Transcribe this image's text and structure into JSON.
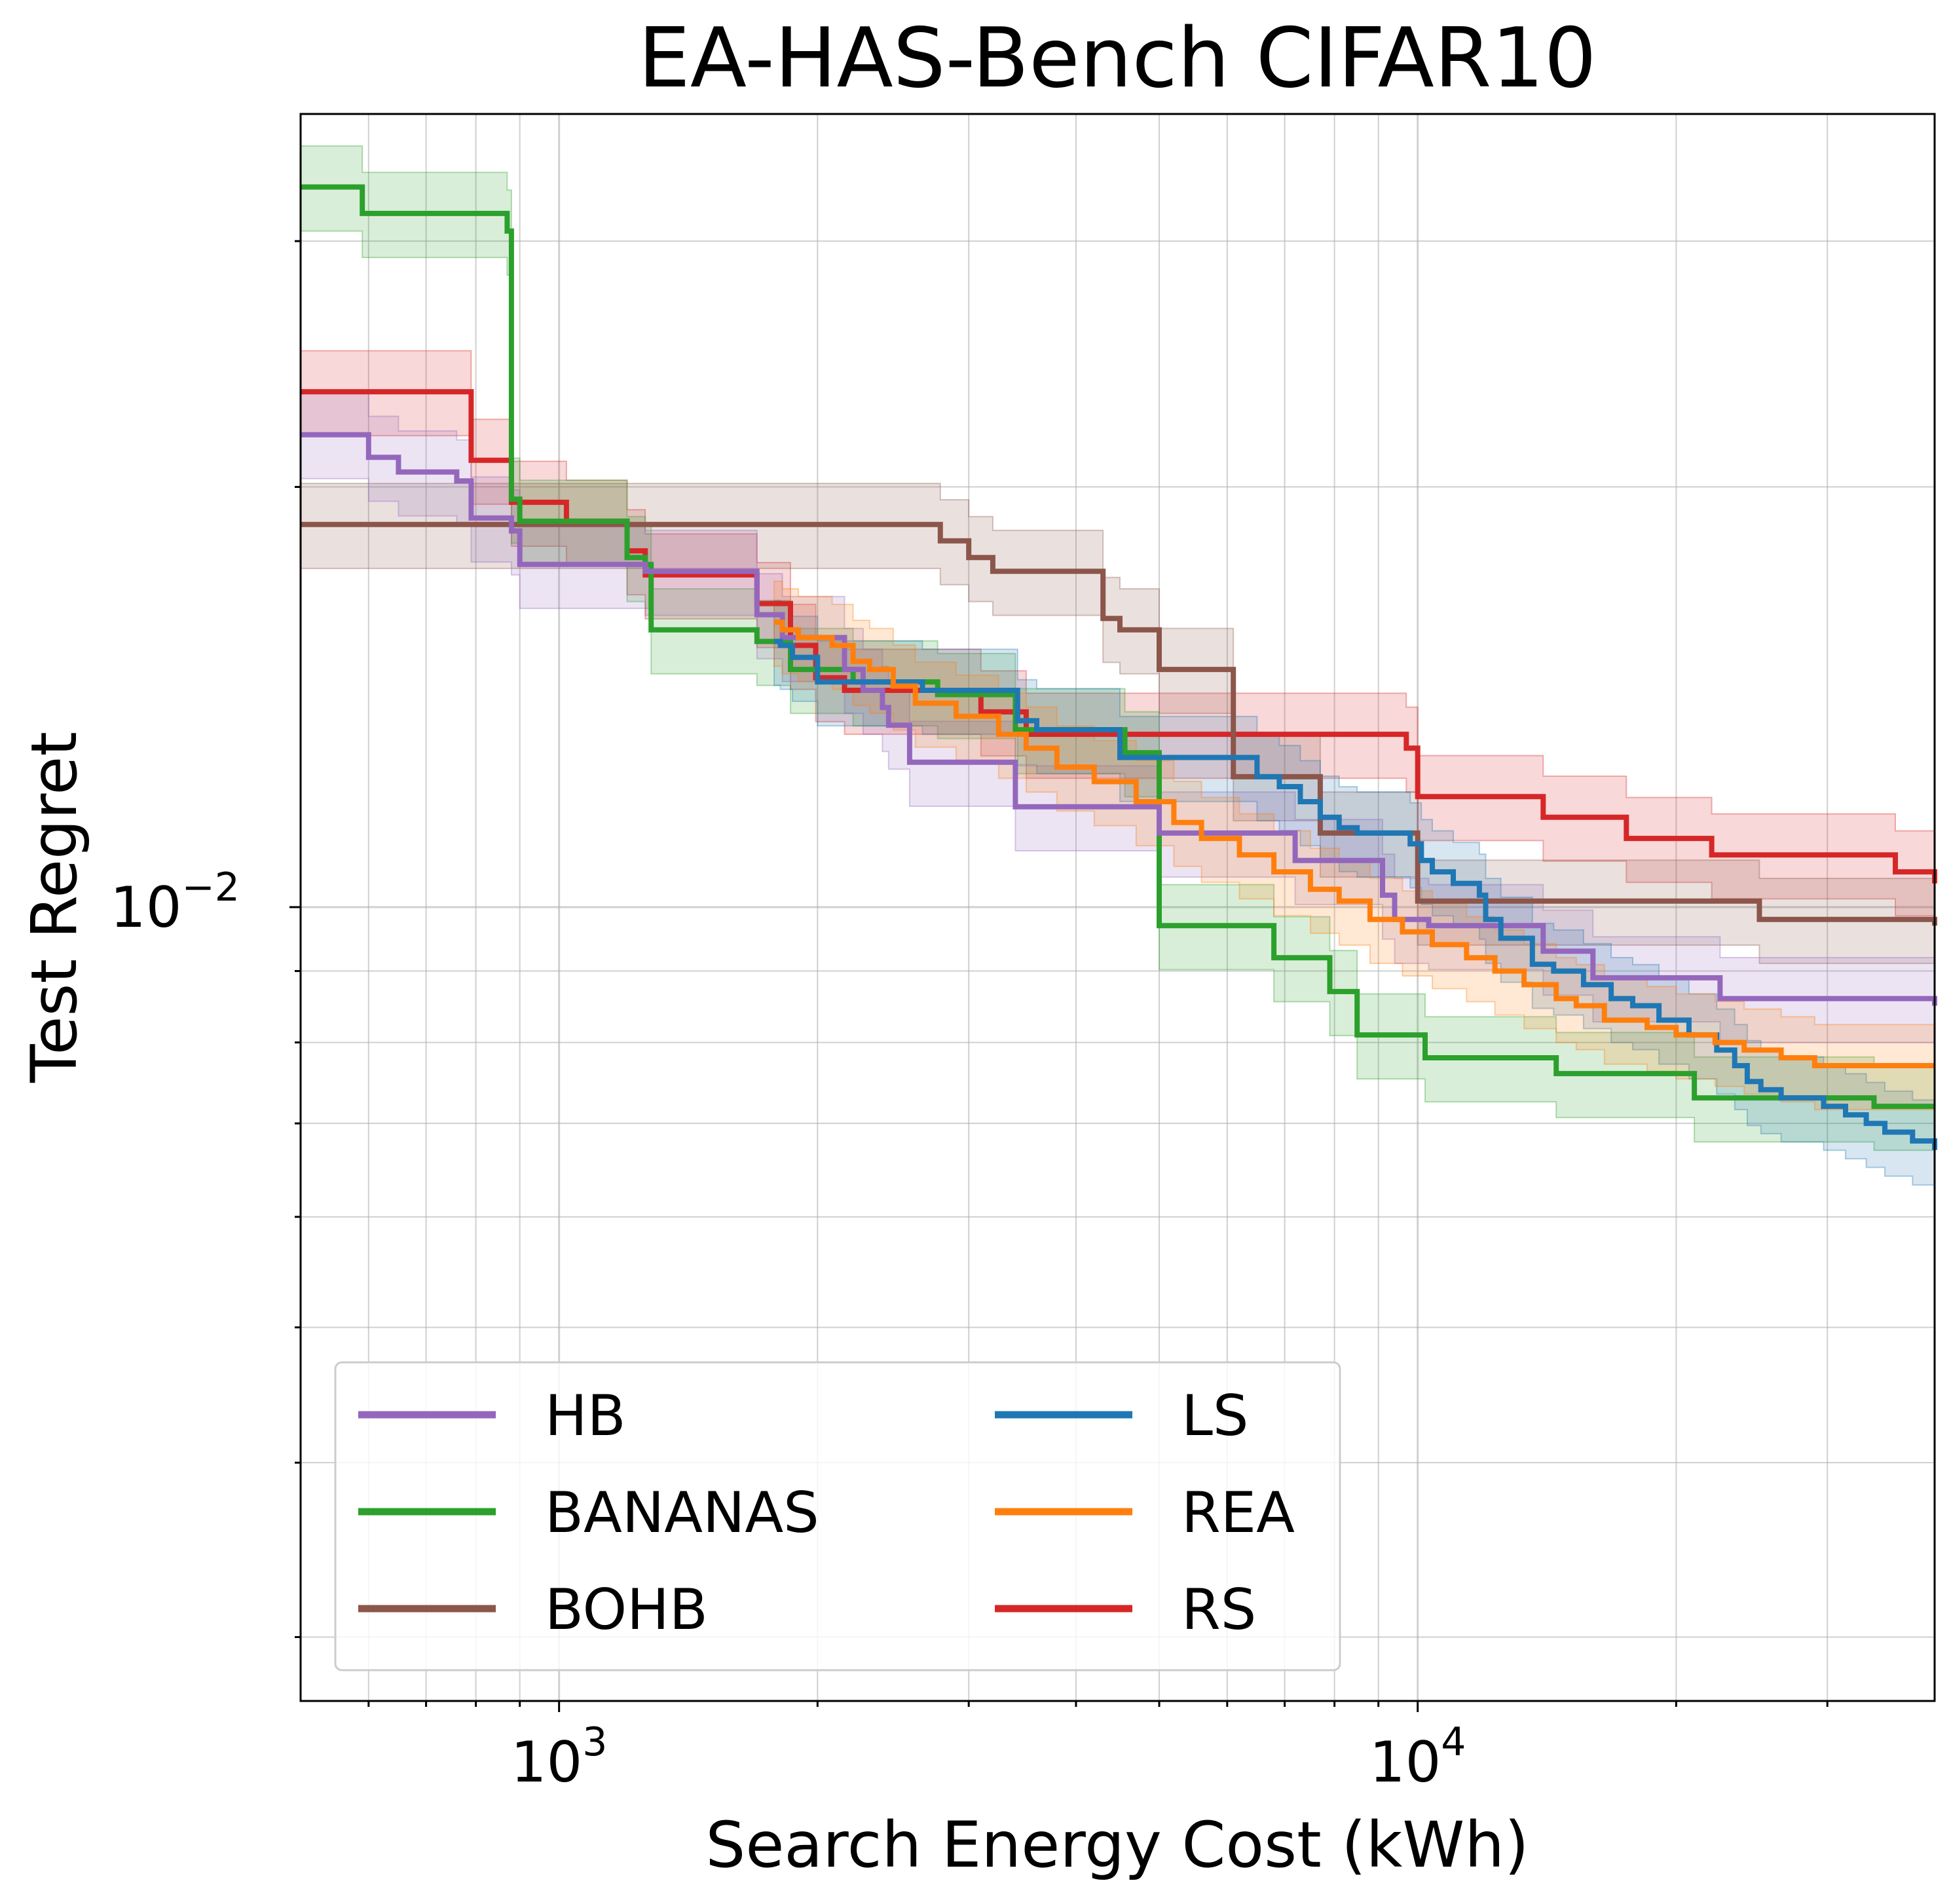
{
  "chart_data": {
    "type": "line",
    "title": "EA-HAS-Bench CIFAR10",
    "xlabel": "Search Energy Cost (kWh)",
    "ylabel": "Test Regret",
    "xscale": "log",
    "yscale": "log",
    "xlim": [
      500,
      40000
    ],
    "ylim": [
      0.0027,
      0.037
    ],
    "x_ticks": [
      {
        "value": 1000,
        "base": "10",
        "exp": "3"
      },
      {
        "value": 10000,
        "base": "10",
        "exp": "4"
      }
    ],
    "y_ticks": [
      {
        "value": 0.01,
        "base": "10",
        "exp": "−2"
      }
    ],
    "grid": true,
    "grid_minor": true,
    "legend": {
      "placement": "lower-left",
      "columns": 2
    },
    "series": [
      {
        "name": "HB",
        "color": "#9467bd",
        "points": [
          [
            500,
            0.0218
          ],
          [
            580,
            0.0218
          ],
          [
            600,
            0.021
          ],
          [
            650,
            0.0205
          ],
          [
            760,
            0.0202
          ],
          [
            790,
            0.019
          ],
          [
            880,
            0.0186
          ],
          [
            900,
            0.0176
          ],
          [
            1200,
            0.0176
          ],
          [
            1260,
            0.0174
          ],
          [
            1660,
            0.0174
          ],
          [
            1700,
            0.0162
          ],
          [
            1820,
            0.0156
          ],
          [
            2080,
            0.0156
          ],
          [
            2150,
            0.0148
          ],
          [
            2260,
            0.0143
          ],
          [
            2380,
            0.0139
          ],
          [
            2420,
            0.0135
          ],
          [
            2560,
            0.0127
          ],
          [
            3300,
            0.0127
          ],
          [
            3400,
            0.0118
          ],
          [
            4800,
            0.0118
          ],
          [
            5000,
            0.0113
          ],
          [
            6900,
            0.0113
          ],
          [
            7200,
            0.0108
          ],
          [
            8400,
            0.0108
          ],
          [
            9100,
            0.0102
          ],
          [
            9400,
            0.0098
          ],
          [
            10300,
            0.0097
          ],
          [
            13300,
            0.0097
          ],
          [
            14000,
            0.0093
          ],
          [
            15300,
            0.0093
          ],
          [
            16000,
            0.0089
          ],
          [
            21500,
            0.0089
          ],
          [
            22500,
            0.0086
          ],
          [
            40000,
            0.0085
          ]
        ]
      },
      {
        "name": "BANANAS",
        "color": "#2ca02c",
        "points": [
          [
            500,
            0.0328
          ],
          [
            550,
            0.0328
          ],
          [
            590,
            0.0314
          ],
          [
            850,
            0.0314
          ],
          [
            870,
            0.0305
          ],
          [
            880,
            0.0196
          ],
          [
            900,
            0.0189
          ],
          [
            1200,
            0.0178
          ],
          [
            1260,
            0.0176
          ],
          [
            1280,
            0.0158
          ],
          [
            1650,
            0.0158
          ],
          [
            1700,
            0.0155
          ],
          [
            1860,
            0.0148
          ],
          [
            2150,
            0.0148
          ],
          [
            2200,
            0.0145
          ],
          [
            2700,
            0.0145
          ],
          [
            2760,
            0.0142
          ],
          [
            3200,
            0.0142
          ],
          [
            3400,
            0.0134
          ],
          [
            4450,
            0.0134
          ],
          [
            4560,
            0.0129
          ],
          [
            4900,
            0.0129
          ],
          [
            5000,
            0.0097
          ],
          [
            6600,
            0.0097
          ],
          [
            6800,
            0.0092
          ],
          [
            7700,
            0.0092
          ],
          [
            7900,
            0.0087
          ],
          [
            8300,
            0.0087
          ],
          [
            8500,
            0.0081
          ],
          [
            10000,
            0.0081
          ],
          [
            10200,
            0.0078
          ],
          [
            12000,
            0.0078
          ],
          [
            13600,
            0.0078
          ],
          [
            14500,
            0.0076
          ],
          [
            19000,
            0.0076
          ],
          [
            21000,
            0.0073
          ],
          [
            31000,
            0.0073
          ],
          [
            34000,
            0.0072
          ],
          [
            40000,
            0.0072
          ]
        ]
      },
      {
        "name": "BOHB",
        "color": "#8c564b",
        "points": [
          [
            500,
            0.0188
          ],
          [
            2700,
            0.0188
          ],
          [
            2780,
            0.0183
          ],
          [
            3000,
            0.0178
          ],
          [
            3200,
            0.0174
          ],
          [
            4250,
            0.0174
          ],
          [
            4300,
            0.0161
          ],
          [
            4500,
            0.0158
          ],
          [
            4900,
            0.0158
          ],
          [
            5000,
            0.0148
          ],
          [
            6000,
            0.0148
          ],
          [
            6100,
            0.0124
          ],
          [
            7600,
            0.0124
          ],
          [
            7700,
            0.0113
          ],
          [
            9700,
            0.0113
          ],
          [
            10000,
            0.0101
          ],
          [
            12000,
            0.0101
          ],
          [
            22000,
            0.0101
          ],
          [
            25000,
            0.0098
          ],
          [
            38000,
            0.0098
          ],
          [
            40000,
            0.0097
          ]
        ]
      },
      {
        "name": "LS",
        "color": "#1f77b4",
        "points": [
          [
            1780,
            0.0155
          ],
          [
            1810,
            0.0154
          ],
          [
            1870,
            0.0151
          ],
          [
            2000,
            0.0145
          ],
          [
            2620,
            0.0145
          ],
          [
            2650,
            0.0143
          ],
          [
            3350,
            0.0143
          ],
          [
            3420,
            0.0136
          ],
          [
            3600,
            0.0134
          ],
          [
            4300,
            0.0134
          ],
          [
            4500,
            0.0128
          ],
          [
            6500,
            0.0124
          ],
          [
            6900,
            0.0122
          ],
          [
            7300,
            0.0119
          ],
          [
            7700,
            0.0116
          ],
          [
            8100,
            0.0114
          ],
          [
            8500,
            0.0113
          ],
          [
            9800,
            0.0111
          ],
          [
            10100,
            0.0108
          ],
          [
            10400,
            0.0106
          ],
          [
            11000,
            0.0104
          ],
          [
            11800,
            0.0102
          ],
          [
            12000,
            0.0098
          ],
          [
            12500,
            0.0095
          ],
          [
            13600,
            0.0091
          ],
          [
            14400,
            0.009
          ],
          [
            15600,
            0.0088
          ],
          [
            16800,
            0.0086
          ],
          [
            17800,
            0.0085
          ],
          [
            19100,
            0.0083
          ],
          [
            20700,
            0.0081
          ],
          [
            22300,
            0.0079
          ],
          [
            23400,
            0.0077
          ],
          [
            24200,
            0.0075
          ],
          [
            25100,
            0.0074
          ],
          [
            26500,
            0.0073
          ],
          [
            29700,
            0.0072
          ],
          [
            31500,
            0.0071
          ],
          [
            33300,
            0.007
          ],
          [
            35000,
            0.0069
          ],
          [
            37700,
            0.0068
          ],
          [
            40000,
            0.0067
          ]
        ]
      },
      {
        "name": "REA",
        "color": "#ff7f0e",
        "points": [
          [
            1780,
            0.016
          ],
          [
            1820,
            0.0158
          ],
          [
            1900,
            0.0156
          ],
          [
            2080,
            0.0154
          ],
          [
            2200,
            0.015
          ],
          [
            2300,
            0.0148
          ],
          [
            2450,
            0.0144
          ],
          [
            2600,
            0.014
          ],
          [
            2900,
            0.0137
          ],
          [
            3250,
            0.0133
          ],
          [
            3500,
            0.013
          ],
          [
            3800,
            0.0126
          ],
          [
            4200,
            0.0123
          ],
          [
            4700,
            0.0119
          ],
          [
            5200,
            0.0115
          ],
          [
            5600,
            0.0112
          ],
          [
            6200,
            0.0109
          ],
          [
            6800,
            0.0106
          ],
          [
            7500,
            0.0103
          ],
          [
            8100,
            0.0101
          ],
          [
            8800,
            0.0098
          ],
          [
            9600,
            0.0096
          ],
          [
            10400,
            0.0094
          ],
          [
            11400,
            0.0092
          ],
          [
            12300,
            0.009
          ],
          [
            13300,
            0.0088
          ],
          [
            14500,
            0.0086
          ],
          [
            15300,
            0.0085
          ],
          [
            16500,
            0.0083
          ],
          [
            18500,
            0.0082
          ],
          [
            20000,
            0.0081
          ],
          [
            22200,
            0.008
          ],
          [
            24000,
            0.0079
          ],
          [
            26500,
            0.0078
          ],
          [
            29000,
            0.0077
          ],
          [
            33000,
            0.0077
          ],
          [
            37000,
            0.0077
          ],
          [
            40000,
            0.0077
          ]
        ]
      },
      {
        "name": "RS",
        "color": "#d62728",
        "points": [
          [
            500,
            0.0234
          ],
          [
            760,
            0.0234
          ],
          [
            790,
            0.0209
          ],
          [
            880,
            0.0195
          ],
          [
            1020,
            0.0189
          ],
          [
            1200,
            0.018
          ],
          [
            1260,
            0.0173
          ],
          [
            1650,
            0.0173
          ],
          [
            1700,
            0.0165
          ],
          [
            1860,
            0.0154
          ],
          [
            1990,
            0.0146
          ],
          [
            2150,
            0.0143
          ],
          [
            2620,
            0.0143
          ],
          [
            3100,
            0.0138
          ],
          [
            3300,
            0.0138
          ],
          [
            3500,
            0.0133
          ],
          [
            9700,
            0.013
          ],
          [
            10000,
            0.012
          ],
          [
            12000,
            0.012
          ],
          [
            13300,
            0.012
          ],
          [
            14000,
            0.0116
          ],
          [
            15600,
            0.0116
          ],
          [
            17500,
            0.0112
          ],
          [
            20200,
            0.0112
          ],
          [
            22000,
            0.0109
          ],
          [
            30000,
            0.0109
          ],
          [
            36000,
            0.0106
          ],
          [
            40000,
            0.0104
          ]
        ]
      }
    ]
  }
}
